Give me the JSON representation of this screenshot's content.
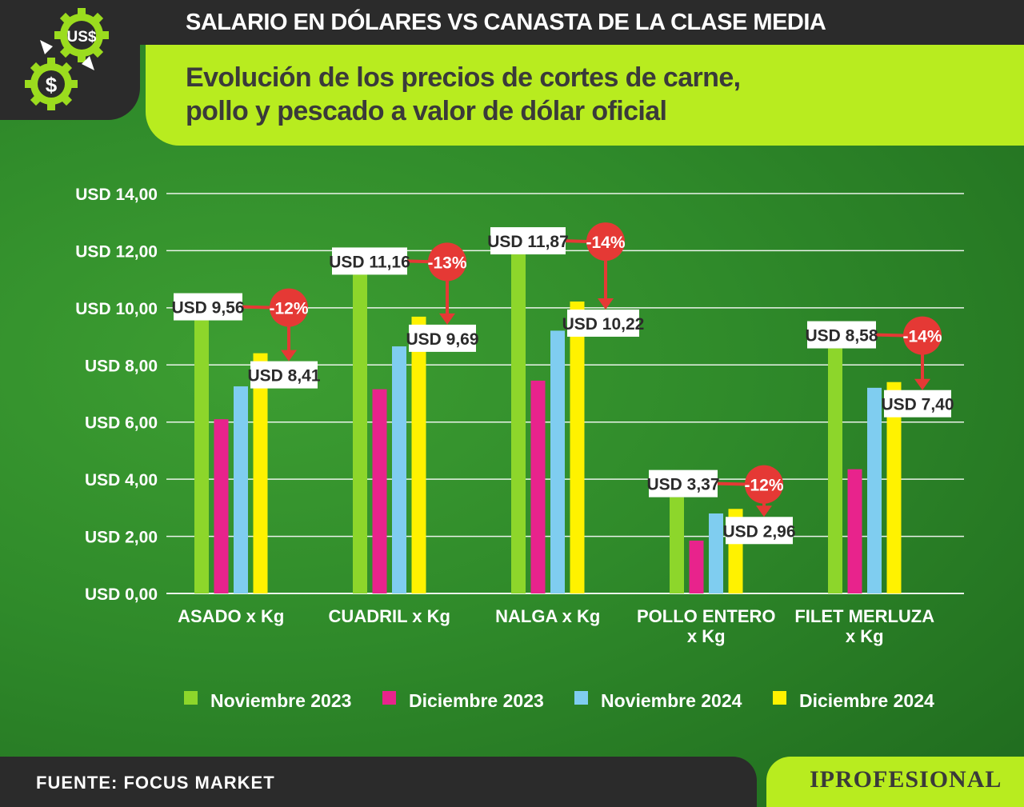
{
  "header": {
    "title": "SALARIO EN DÓLARES VS CANASTA DE LA CLASE MEDIA",
    "subtitle_line1": "Evolución de los precios de cortes de carne,",
    "subtitle_line2": "pollo y pescado a valor de dólar oficial",
    "logo_top_text": "US$",
    "logo_bottom_text": "$"
  },
  "colors": {
    "background": "#2f8a2a",
    "dark": "#2b2b2b",
    "accent": "#b8ec1f",
    "series": [
      "#8dd62b",
      "#e8238c",
      "#7fcdf0",
      "#fff200"
    ],
    "badge": "#e53935"
  },
  "chart_data": {
    "type": "bar",
    "categories": [
      [
        "ASADO x Kg"
      ],
      [
        "CUADRIL x Kg"
      ],
      [
        "NALGA x Kg"
      ],
      [
        "POLLO ENTERO",
        "x Kg"
      ],
      [
        "FILET MERLUZA",
        "x Kg"
      ]
    ],
    "series": [
      {
        "name": "Noviembre 2023",
        "values": [
          9.56,
          11.16,
          11.87,
          3.37,
          8.58
        ]
      },
      {
        "name": "Diciembre 2023",
        "values": [
          6.1,
          7.15,
          7.45,
          1.85,
          4.35
        ]
      },
      {
        "name": "Noviembre 2024",
        "values": [
          7.25,
          8.65,
          9.2,
          2.8,
          7.2
        ]
      },
      {
        "name": "Diciembre 2024",
        "values": [
          8.41,
          9.69,
          10.22,
          2.96,
          7.4
        ]
      }
    ],
    "yticks": [
      "USD 0,00",
      "USD 2,00",
      "USD 4,00",
      "USD 6,00",
      "USD 8,00",
      "USD 10,00",
      "USD 12,00",
      "USD 14,00"
    ],
    "ylim": [
      0,
      14
    ],
    "annotations": [
      {
        "start_label": "USD 9,56",
        "end_label": "USD 8,41",
        "change": "-12%"
      },
      {
        "start_label": "USD 11,16",
        "end_label": "USD 9,69",
        "change": "-13%"
      },
      {
        "start_label": "USD 11,87",
        "end_label": "USD 10,22",
        "change": "-14%"
      },
      {
        "start_label": "USD 3,37",
        "end_label": "USD 2,96",
        "change": "-12%"
      },
      {
        "start_label": "USD 8,58",
        "end_label": "USD 7,40",
        "change": "-14%"
      }
    ],
    "grid": true,
    "legend_position": "bottom"
  },
  "footer": {
    "source": "FUENTE: FOCUS MARKET",
    "brand": "IPROFESIONAL"
  }
}
